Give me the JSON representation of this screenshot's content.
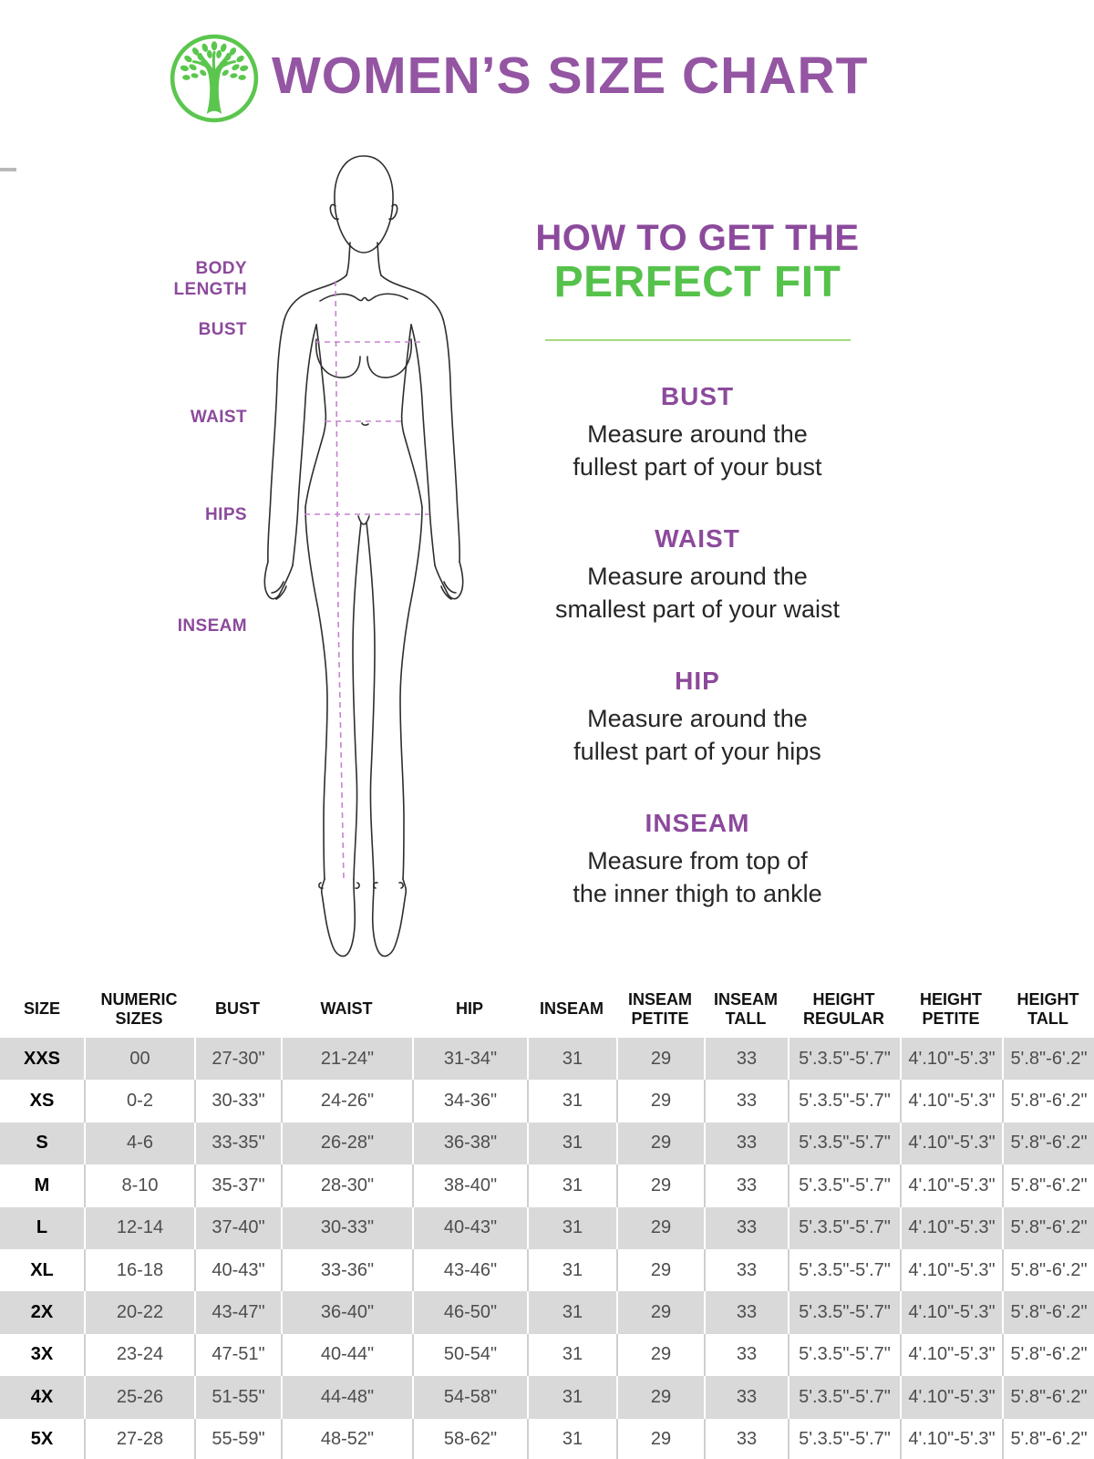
{
  "header": {
    "title": "WOMEN’S SIZE CHART",
    "logo": "tree-icon",
    "title_color": "#9455a3",
    "logo_color": "#5bc64e"
  },
  "figure": {
    "labels": {
      "body_length": "BODY LENGTH",
      "bust": "BUST",
      "waist": "WAIST",
      "hips": "HIPS",
      "inseam": "INSEAM"
    },
    "dashed_line_color": "#c583cf"
  },
  "howto": {
    "line1": "HOW TO GET THE",
    "line2": "PERFECT FIT",
    "accent_purple": "#8c4a9c",
    "accent_green": "#55c24b",
    "divider_color": "#a7d97b",
    "sections": [
      {
        "heading": "BUST",
        "lines": [
          "Measure around the",
          "fullest part of your bust"
        ]
      },
      {
        "heading": "WAIST",
        "lines": [
          "Measure around the",
          "smallest part of your waist"
        ]
      },
      {
        "heading": "HIP",
        "lines": [
          "Measure around the",
          "fullest part of your hips"
        ]
      },
      {
        "heading": "INSEAM",
        "lines": [
          "Measure from top of",
          "the inner thigh to ankle"
        ]
      }
    ]
  },
  "table": {
    "row_gray": "#d9d9d9",
    "columns": [
      "SIZE",
      "NUMERIC SIZES",
      "BUST",
      "WAIST",
      "HIP",
      "INSEAM",
      "INSEAM PETITE",
      "INSEAM TALL",
      "HEIGHT REGULAR",
      "HEIGHT PETITE",
      "HEIGHT TALL"
    ],
    "rows": [
      [
        "XXS",
        "00",
        "27-30\"",
        "21-24\"",
        "31-34\"",
        "31",
        "29",
        "33",
        "5'.3.5\"-5'.7\"",
        "4'.10\"-5'.3\"",
        "5'.8\"-6'.2\""
      ],
      [
        "XS",
        "0-2",
        "30-33\"",
        "24-26\"",
        "34-36\"",
        "31",
        "29",
        "33",
        "5'.3.5\"-5'.7\"",
        "4'.10\"-5'.3\"",
        "5'.8\"-6'.2\""
      ],
      [
        "S",
        "4-6",
        "33-35\"",
        "26-28\"",
        "36-38\"",
        "31",
        "29",
        "33",
        "5'.3.5\"-5'.7\"",
        "4'.10\"-5'.3\"",
        "5'.8\"-6'.2\""
      ],
      [
        "M",
        "8-10",
        "35-37\"",
        "28-30\"",
        "38-40\"",
        "31",
        "29",
        "33",
        "5'.3.5\"-5'.7\"",
        "4'.10\"-5'.3\"",
        "5'.8\"-6'.2\""
      ],
      [
        "L",
        "12-14",
        "37-40\"",
        "30-33\"",
        "40-43\"",
        "31",
        "29",
        "33",
        "5'.3.5\"-5'.7\"",
        "4'.10\"-5'.3\"",
        "5'.8\"-6'.2\""
      ],
      [
        "XL",
        "16-18",
        "40-43\"",
        "33-36\"",
        "43-46\"",
        "31",
        "29",
        "33",
        "5'.3.5\"-5'.7\"",
        "4'.10\"-5'.3\"",
        "5'.8\"-6'.2\""
      ],
      [
        "2X",
        "20-22",
        "43-47\"",
        "36-40\"",
        "46-50\"",
        "31",
        "29",
        "33",
        "5'.3.5\"-5'.7\"",
        "4'.10\"-5'.3\"",
        "5'.8\"-6'.2\""
      ],
      [
        "3X",
        "23-24",
        "47-51\"",
        "40-44\"",
        "50-54\"",
        "31",
        "29",
        "33",
        "5'.3.5\"-5'.7\"",
        "4'.10\"-5'.3\"",
        "5'.8\"-6'.2\""
      ],
      [
        "4X",
        "25-26",
        "51-55\"",
        "44-48\"",
        "54-58\"",
        "31",
        "29",
        "33",
        "5'.3.5\"-5'.7\"",
        "4'.10\"-5'.3\"",
        "5'.8\"-6'.2\""
      ],
      [
        "5X",
        "27-28",
        "55-59\"",
        "48-52\"",
        "58-62\"",
        "31",
        "29",
        "33",
        "5'.3.5\"-5'.7\"",
        "4'.10\"-5'.3\"",
        "5'.8\"-6'.2\""
      ]
    ]
  }
}
